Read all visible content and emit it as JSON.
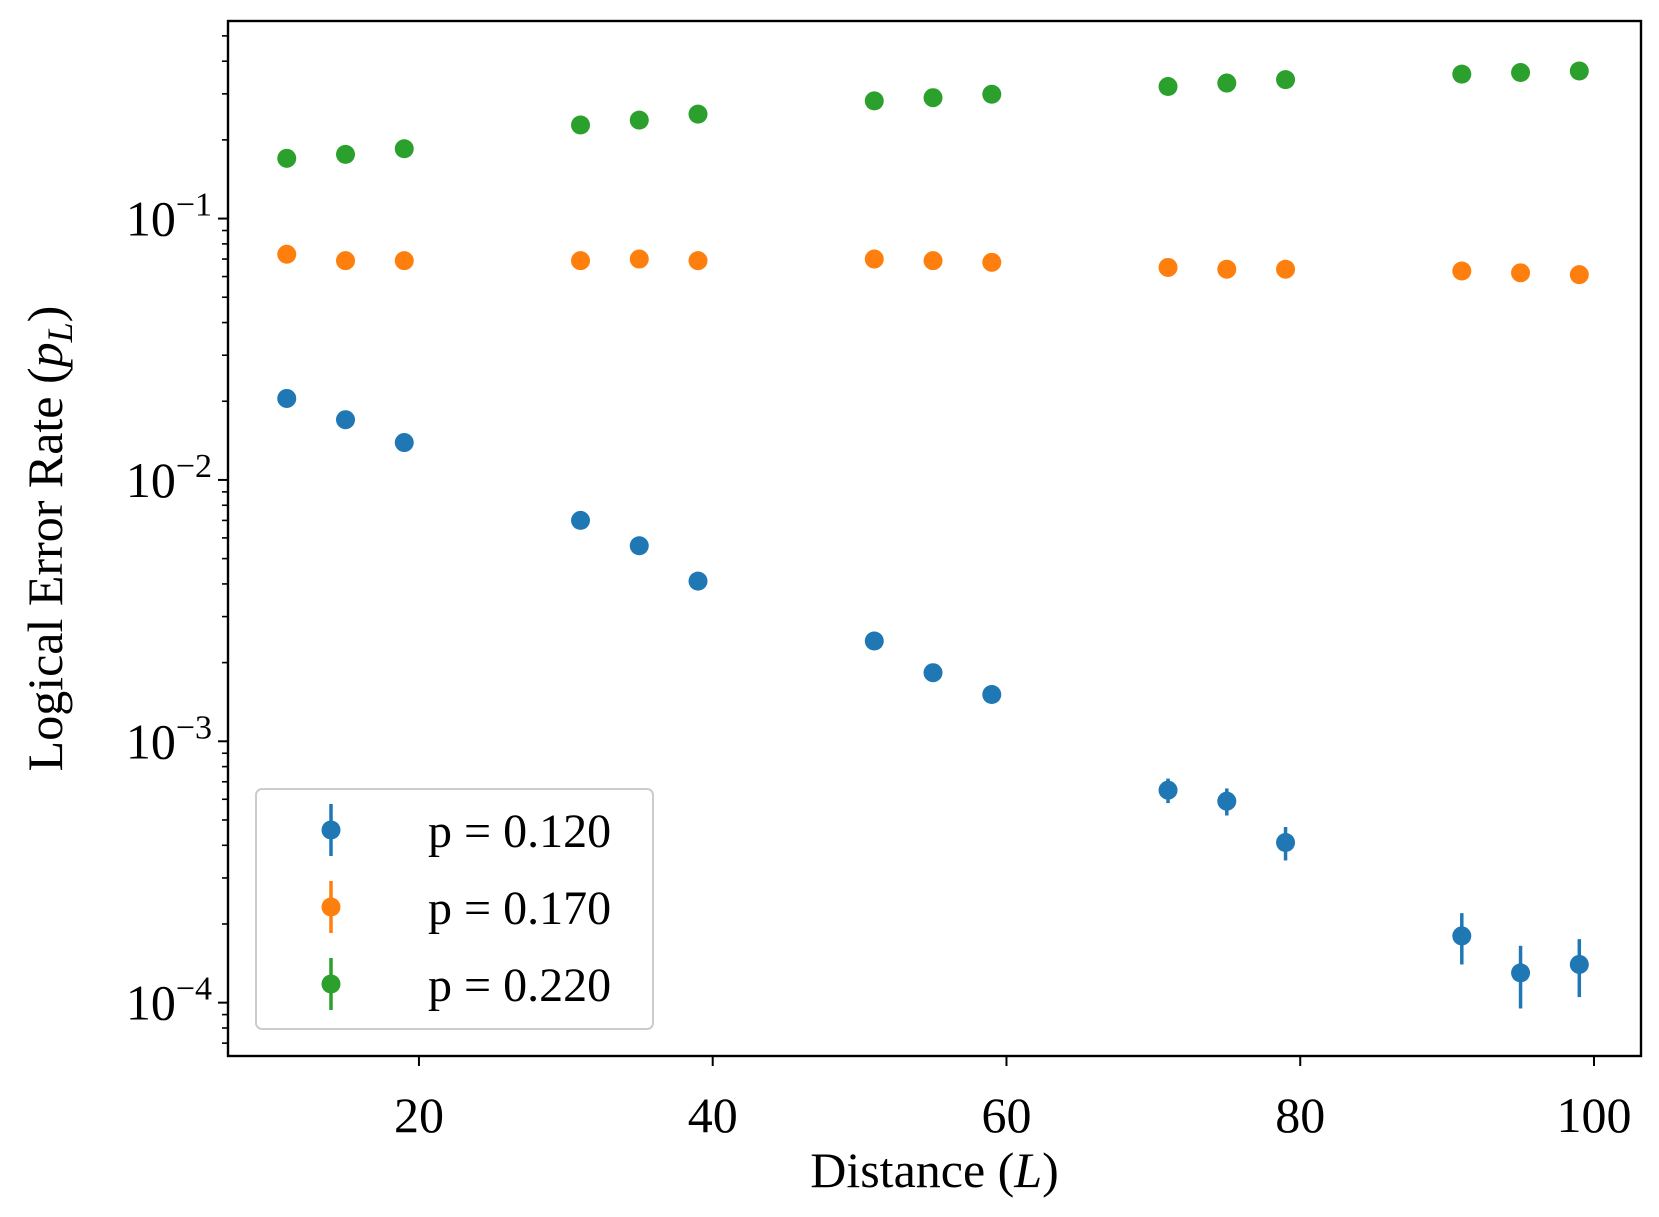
{
  "chart_data": {
    "type": "scatter",
    "xlabel": {
      "text": "Distance (",
      "var": "L",
      "suffix": ")"
    },
    "ylabel": {
      "text": "Logical Error Rate (",
      "var": "p",
      "sub": "L",
      "suffix": ")"
    },
    "x_scale": "linear",
    "y_scale": "log",
    "xlim": [
      7.0,
      103.2
    ],
    "ylim": [
      6.25e-05,
      0.57
    ],
    "x_ticks": [
      20,
      40,
      60,
      80,
      100
    ],
    "x_tick_labels": [
      "20",
      "40",
      "60",
      "80",
      "100"
    ],
    "y_ticks": [
      0.0001,
      0.001,
      0.01,
      0.1
    ],
    "y_tick_labels": [
      {
        "base": "10",
        "exp": "−4"
      },
      {
        "base": "10",
        "exp": "−3"
      },
      {
        "base": "10",
        "exp": "−2"
      },
      {
        "base": "10",
        "exp": "−1"
      }
    ],
    "grid": false,
    "legend_position": "lower-left",
    "x": [
      11,
      15,
      19,
      31,
      35,
      39,
      51,
      55,
      59,
      71,
      75,
      79,
      91,
      95,
      99
    ],
    "series": [
      {
        "name": "p = 0.120",
        "color": "#1f77b4",
        "values": [
          0.0205,
          0.017,
          0.0139,
          0.007,
          0.0056,
          0.0041,
          0.00242,
          0.00183,
          0.00151,
          0.00065,
          0.00059,
          0.00041,
          0.00018,
          0.00013,
          0.00014
        ],
        "errors": [
          0.0004,
          0.0003,
          0.0003,
          0.0002,
          0.0002,
          0.00015,
          0.0001,
          8e-05,
          7e-05,
          7e-05,
          7e-05,
          6e-05,
          4e-05,
          3.5e-05,
          3.5e-05
        ]
      },
      {
        "name": "p = 0.170",
        "color": "#ff7f0e",
        "values": [
          0.073,
          0.069,
          0.069,
          0.069,
          0.07,
          0.069,
          0.07,
          0.069,
          0.068,
          0.065,
          0.064,
          0.064,
          0.063,
          0.062,
          0.061
        ],
        "errors": [
          0.001,
          0.001,
          0.001,
          0.001,
          0.001,
          0.001,
          0.001,
          0.001,
          0.001,
          0.001,
          0.001,
          0.001,
          0.001,
          0.001,
          0.001
        ]
      },
      {
        "name": "p = 0.220",
        "color": "#2ca02c",
        "values": [
          0.17,
          0.176,
          0.185,
          0.228,
          0.238,
          0.251,
          0.282,
          0.29,
          0.299,
          0.32,
          0.33,
          0.34,
          0.357,
          0.362,
          0.367
        ],
        "errors": [
          0.002,
          0.002,
          0.002,
          0.002,
          0.002,
          0.002,
          0.002,
          0.002,
          0.002,
          0.002,
          0.002,
          0.002,
          0.002,
          0.002,
          0.002
        ]
      }
    ]
  }
}
